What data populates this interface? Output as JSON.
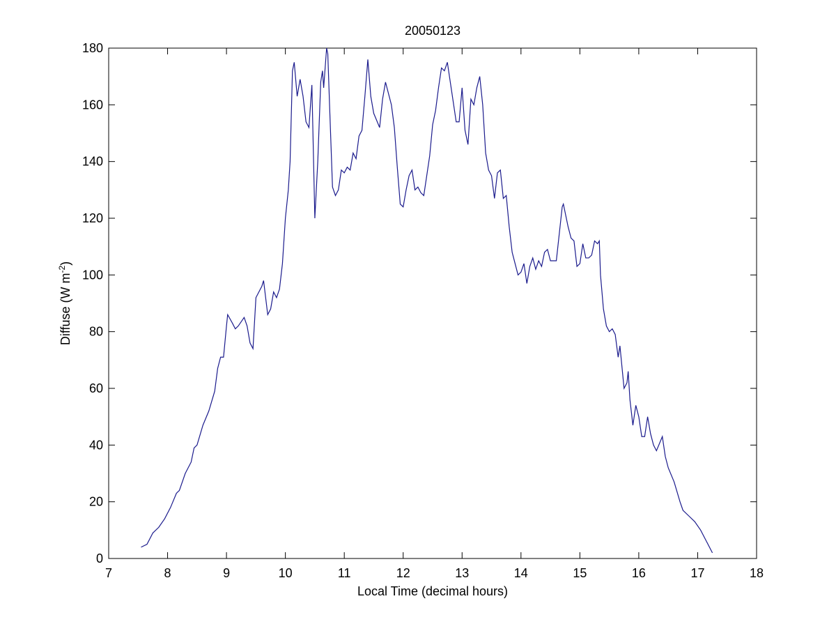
{
  "chart_data": {
    "type": "line",
    "title": "20050123",
    "x_label": "Local Time (decimal hours)",
    "y_label": {
      "text": "Diffuse (W m",
      "superscript": "-2",
      "suffix": ")"
    },
    "color": "#1a1a8c",
    "xlim": [
      7,
      18
    ],
    "xticks": [
      7,
      8,
      9,
      10,
      11,
      12,
      13,
      14,
      15,
      16,
      17,
      18
    ],
    "ylim": [
      0,
      180
    ],
    "yticks": [
      0,
      20,
      40,
      60,
      80,
      100,
      120,
      140,
      160,
      180
    ],
    "x": [
      7.55,
      7.65,
      7.75,
      7.85,
      7.95,
      8.05,
      8.15,
      8.2,
      8.3,
      8.4,
      8.45,
      8.5,
      8.6,
      8.7,
      8.8,
      8.85,
      8.9,
      8.95,
      9.0,
      9.02,
      9.1,
      9.15,
      9.2,
      9.3,
      9.35,
      9.4,
      9.45,
      9.5,
      9.6,
      9.63,
      9.7,
      9.75,
      9.8,
      9.85,
      9.9,
      9.95,
      10.0,
      10.05,
      10.08,
      10.12,
      10.15,
      10.2,
      10.25,
      10.3,
      10.35,
      10.4,
      10.45,
      10.5,
      10.55,
      10.6,
      10.63,
      10.65,
      10.7,
      10.72,
      10.75,
      10.8,
      10.85,
      10.9,
      10.95,
      11.0,
      11.05,
      11.1,
      11.15,
      11.2,
      11.25,
      11.3,
      11.35,
      11.4,
      11.45,
      11.5,
      11.6,
      11.65,
      11.7,
      11.8,
      11.85,
      11.9,
      11.95,
      12.0,
      12.05,
      12.1,
      12.15,
      12.2,
      12.25,
      12.3,
      12.35,
      12.45,
      12.5,
      12.55,
      12.6,
      12.65,
      12.7,
      12.75,
      12.8,
      12.85,
      12.9,
      12.95,
      13.0,
      13.05,
      13.1,
      13.15,
      13.2,
      13.25,
      13.3,
      13.35,
      13.4,
      13.45,
      13.5,
      13.55,
      13.6,
      13.65,
      13.7,
      13.75,
      13.8,
      13.85,
      13.9,
      13.95,
      14.0,
      14.05,
      14.1,
      14.15,
      14.2,
      14.25,
      14.3,
      14.35,
      14.4,
      14.45,
      14.5,
      14.6,
      14.7,
      14.72,
      14.8,
      14.85,
      14.9,
      14.95,
      15.0,
      15.05,
      15.1,
      15.15,
      15.2,
      15.25,
      15.3,
      15.33,
      15.35,
      15.4,
      15.45,
      15.5,
      15.55,
      15.6,
      15.65,
      15.68,
      15.75,
      15.8,
      15.82,
      15.85,
      15.9,
      15.95,
      16.0,
      16.05,
      16.1,
      16.15,
      16.2,
      16.25,
      16.3,
      16.4,
      16.45,
      16.5,
      16.6,
      16.7,
      16.75,
      16.85,
      16.95,
      17.05,
      17.15,
      17.25
    ],
    "values": [
      4,
      5,
      9,
      11,
      14,
      18,
      23,
      24,
      30,
      34,
      39,
      40,
      47,
      52,
      59,
      67,
      71,
      71,
      82,
      86,
      83,
      81,
      82,
      85,
      82,
      76,
      74,
      92,
      96,
      98,
      86,
      88,
      94,
      92,
      95,
      104,
      120,
      130,
      140,
      172,
      175,
      163,
      169,
      163,
      154,
      152,
      167,
      120,
      140,
      168,
      172,
      166,
      180,
      178,
      160,
      131,
      128,
      130,
      137,
      136,
      138,
      137,
      143,
      141,
      149,
      151,
      163,
      176,
      163,
      157,
      152,
      162,
      168,
      160,
      152,
      138,
      125,
      124,
      130,
      135,
      137,
      130,
      131,
      129,
      128,
      142,
      153,
      158,
      166,
      173,
      172,
      175,
      168,
      161,
      154,
      154,
      166,
      151,
      146,
      162,
      160,
      166,
      170,
      160,
      143,
      137,
      135,
      127,
      136,
      137,
      127,
      128,
      117,
      108,
      104,
      100,
      101,
      104,
      97,
      103,
      106,
      102,
      105,
      103,
      108,
      109,
      105,
      105,
      124,
      125,
      117,
      113,
      112,
      103,
      104,
      111,
      106,
      106,
      107,
      112,
      111,
      112,
      100,
      88,
      82,
      80,
      81,
      79,
      71,
      75,
      60,
      62,
      66,
      56,
      47,
      54,
      50,
      43,
      43,
      50,
      44,
      40,
      38,
      43,
      36,
      32,
      27,
      20,
      17,
      15,
      13,
      10,
      6,
      2
    ]
  }
}
